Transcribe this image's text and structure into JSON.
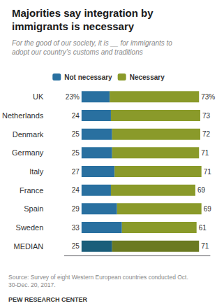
{
  "chart_data": {
    "type": "bar",
    "orientation": "horizontal",
    "stacked": true,
    "title": "Majorities say integration by\nimmigrants is necessary",
    "subtitle": "For the good of our society, it is __ for immigrants to\nadopt our country’s customs and traditions",
    "categories": [
      "UK",
      "Netherlands",
      "Denmark",
      "Germany",
      "Italy",
      "France",
      "Spain",
      "Sweden",
      "MEDIAN"
    ],
    "series": [
      {
        "name": "Not necessary",
        "colors": [
          "#2970a0",
          "#2970a0",
          "#2970a0",
          "#2970a0",
          "#2970a0",
          "#2970a0",
          "#2970a0",
          "#2970a0",
          "#1b5e7a"
        ],
        "values": [
          23,
          24,
          25,
          25,
          27,
          24,
          29,
          33,
          25
        ],
        "value_labels": [
          "23%",
          "24",
          "25",
          "25",
          "27",
          "24",
          "29",
          "33",
          "25"
        ]
      },
      {
        "name": "Necessary",
        "colors": [
          "#8a9a2a",
          "#8a9a2a",
          "#8a9a2a",
          "#8a9a2a",
          "#8a9a2a",
          "#8a9a2a",
          "#8a9a2a",
          "#8a9a2a",
          "#6b7a22"
        ],
        "values": [
          73,
          73,
          72,
          71,
          71,
          69,
          69,
          61,
          71
        ],
        "value_labels": [
          "73%",
          "73",
          "72",
          "71",
          "71",
          "69",
          "69",
          "61",
          "71"
        ]
      }
    ],
    "xlim": [
      -14,
      105
    ],
    "tick_labels": "y",
    "data_labels": true,
    "legend": "top",
    "grid": false,
    "annotations": [
      "Source: Survey of eight Western European countries conducted Oct.\n30-Dec. 20, 2017.",
      "PEW RESEARCH CENTER"
    ]
  }
}
